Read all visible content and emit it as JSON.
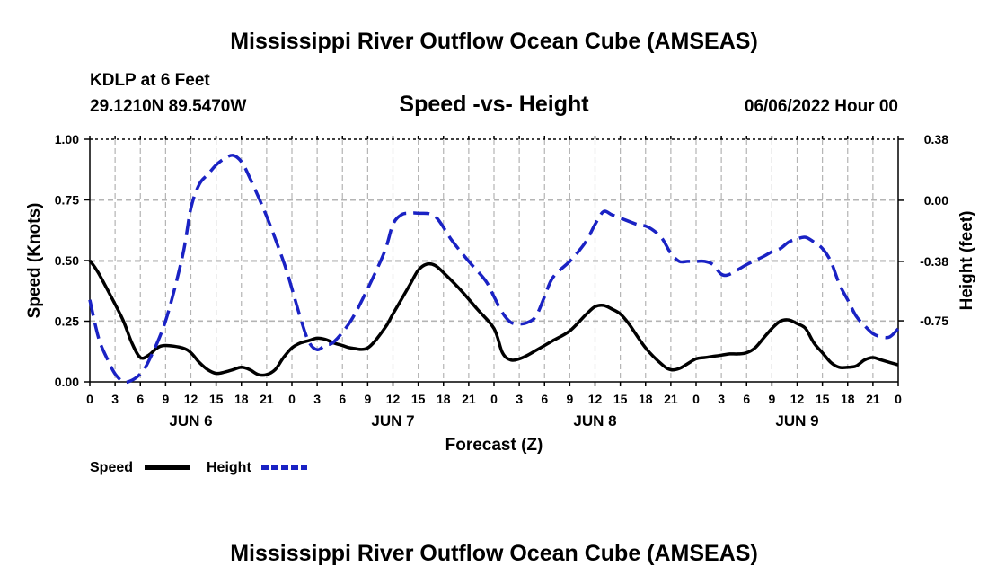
{
  "title": "Mississippi River Outflow Ocean Cube (AMSEAS)",
  "footer_title": "Mississippi River Outflow Ocean Cube (AMSEAS)",
  "station": "KDLP at 6 Feet",
  "location": "29.1210N  89.5470W",
  "chart_subtitle": "Speed -vs- Height",
  "forecast_time": "06/06/2022 Hour 00",
  "chart_data": {
    "type": "line",
    "title": "Speed -vs- Height",
    "xlabel": "Forecast (Z)",
    "x_unit": "hours since 06/06/2022 00Z",
    "xlim": [
      0,
      96
    ],
    "x_tick_hours": [
      0,
      3,
      6,
      9,
      12,
      15,
      18,
      21,
      24,
      27,
      30,
      33,
      36,
      39,
      42,
      45,
      48,
      51,
      54,
      57,
      60,
      63,
      66,
      69,
      72,
      75,
      78,
      81,
      84,
      87,
      90,
      93,
      96
    ],
    "x_tick_labels": [
      "0",
      "3",
      "6",
      "9",
      "12",
      "15",
      "18",
      "21",
      "0",
      "3",
      "6",
      "9",
      "12",
      "15",
      "18",
      "21",
      "0",
      "3",
      "6",
      "9",
      "12",
      "15",
      "18",
      "21",
      "0",
      "3",
      "6",
      "9",
      "12",
      "15",
      "18",
      "21",
      "0"
    ],
    "day_labels": [
      {
        "hour": 12,
        "label": "JUN 6"
      },
      {
        "hour": 36,
        "label": "JUN 7"
      },
      {
        "hour": 60,
        "label": "JUN 8"
      },
      {
        "hour": 84,
        "label": "JUN 9"
      }
    ],
    "left_axis": {
      "label": "Speed (Knots)",
      "range": [
        0,
        1
      ],
      "ticks": [
        0,
        0.25,
        0.5,
        0.75,
        1.0
      ],
      "tick_labels": [
        "0.00",
        "0.25",
        "0.50",
        "0.75",
        "1.00"
      ]
    },
    "right_axis": {
      "label": "Height (feet)",
      "range": [
        -1.13,
        0.38
      ],
      "ticks": [
        0.38,
        0.0,
        -0.38,
        -0.75
      ],
      "tick_labels": [
        "0.38",
        "0.00",
        "-0.38",
        "-0.75"
      ]
    },
    "grid": true,
    "series": [
      {
        "name": "Speed",
        "axis": "left",
        "color": "#000000",
        "dash": "solid",
        "x": [
          0,
          1,
          3,
          4,
          5,
          6,
          7,
          8,
          9,
          11,
          12,
          13,
          14,
          15,
          16,
          17,
          18,
          19,
          20,
          21,
          22,
          23,
          24,
          25,
          26,
          27,
          28,
          29,
          30,
          31,
          33,
          35,
          36,
          38,
          39,
          40,
          41,
          42,
          44,
          46,
          48,
          49,
          50,
          51,
          52,
          53,
          54,
          55,
          57,
          59,
          60,
          61,
          62,
          63,
          64,
          66,
          68,
          69,
          70,
          71,
          72,
          73,
          74,
          75,
          76,
          77,
          78,
          79,
          80,
          81,
          82,
          83,
          84,
          85,
          86,
          87,
          88,
          89,
          90,
          91,
          92,
          93,
          94,
          95,
          96
        ],
        "y": [
          0.5,
          0.45,
          0.32,
          0.25,
          0.16,
          0.1,
          0.11,
          0.14,
          0.15,
          0.14,
          0.12,
          0.08,
          0.05,
          0.035,
          0.04,
          0.05,
          0.06,
          0.05,
          0.03,
          0.03,
          0.05,
          0.1,
          0.14,
          0.16,
          0.17,
          0.18,
          0.175,
          0.16,
          0.15,
          0.14,
          0.14,
          0.22,
          0.28,
          0.4,
          0.46,
          0.485,
          0.48,
          0.45,
          0.38,
          0.3,
          0.22,
          0.12,
          0.09,
          0.095,
          0.11,
          0.13,
          0.15,
          0.17,
          0.21,
          0.28,
          0.31,
          0.315,
          0.3,
          0.28,
          0.24,
          0.14,
          0.07,
          0.05,
          0.055,
          0.075,
          0.095,
          0.1,
          0.105,
          0.11,
          0.115,
          0.115,
          0.12,
          0.14,
          0.18,
          0.22,
          0.25,
          0.255,
          0.24,
          0.22,
          0.16,
          0.12,
          0.08,
          0.06,
          0.06,
          0.065,
          0.09,
          0.1,
          0.09,
          0.08,
          0.07
        ]
      },
      {
        "name": "Height",
        "axis": "right",
        "color": "#1a22c4",
        "dash": "dashed",
        "x": [
          0,
          1,
          2,
          3,
          4,
          5,
          6,
          7,
          9,
          11,
          12,
          13,
          14,
          15,
          16,
          17,
          18,
          19,
          21,
          23,
          24,
          25,
          26,
          27,
          28,
          29,
          31,
          33,
          35,
          36,
          37,
          38,
          39,
          41,
          43,
          45,
          47,
          48,
          49,
          50,
          51,
          52,
          53,
          54,
          55,
          57,
          58,
          59,
          60,
          61,
          62,
          63,
          65,
          66,
          67,
          68,
          69,
          70,
          71,
          72,
          73,
          74,
          75,
          76,
          78,
          80,
          81,
          82,
          83,
          84,
          85,
          86,
          87,
          88,
          89,
          90,
          91,
          92,
          93,
          94,
          95,
          96
        ],
        "y": [
          -0.62,
          -0.85,
          -0.98,
          -1.08,
          -1.13,
          -1.12,
          -1.08,
          -1.0,
          -0.75,
          -0.35,
          -0.05,
          0.1,
          0.16,
          0.22,
          0.26,
          0.28,
          0.24,
          0.14,
          -0.1,
          -0.38,
          -0.55,
          -0.73,
          -0.88,
          -0.93,
          -0.9,
          -0.88,
          -0.75,
          -0.55,
          -0.32,
          -0.15,
          -0.09,
          -0.08,
          -0.08,
          -0.1,
          -0.25,
          -0.38,
          -0.5,
          -0.6,
          -0.7,
          -0.76,
          -0.77,
          -0.76,
          -0.72,
          -0.6,
          -0.48,
          -0.38,
          -0.32,
          -0.25,
          -0.15,
          -0.07,
          -0.09,
          -0.11,
          -0.15,
          -0.16,
          -0.19,
          -0.24,
          -0.33,
          -0.38,
          -0.38,
          -0.38,
          -0.38,
          -0.4,
          -0.46,
          -0.46,
          -0.4,
          -0.35,
          -0.32,
          -0.3,
          -0.26,
          -0.24,
          -0.23,
          -0.26,
          -0.3,
          -0.38,
          -0.52,
          -0.62,
          -0.72,
          -0.78,
          -0.83,
          -0.85,
          -0.85,
          -0.8
        ]
      }
    ],
    "legend": [
      {
        "label": "Speed",
        "color": "#000000",
        "dash": "solid"
      },
      {
        "label": "Height",
        "color": "#1a22c4",
        "dash": "dashed"
      }
    ],
    "legend_position": "bottom-left"
  }
}
